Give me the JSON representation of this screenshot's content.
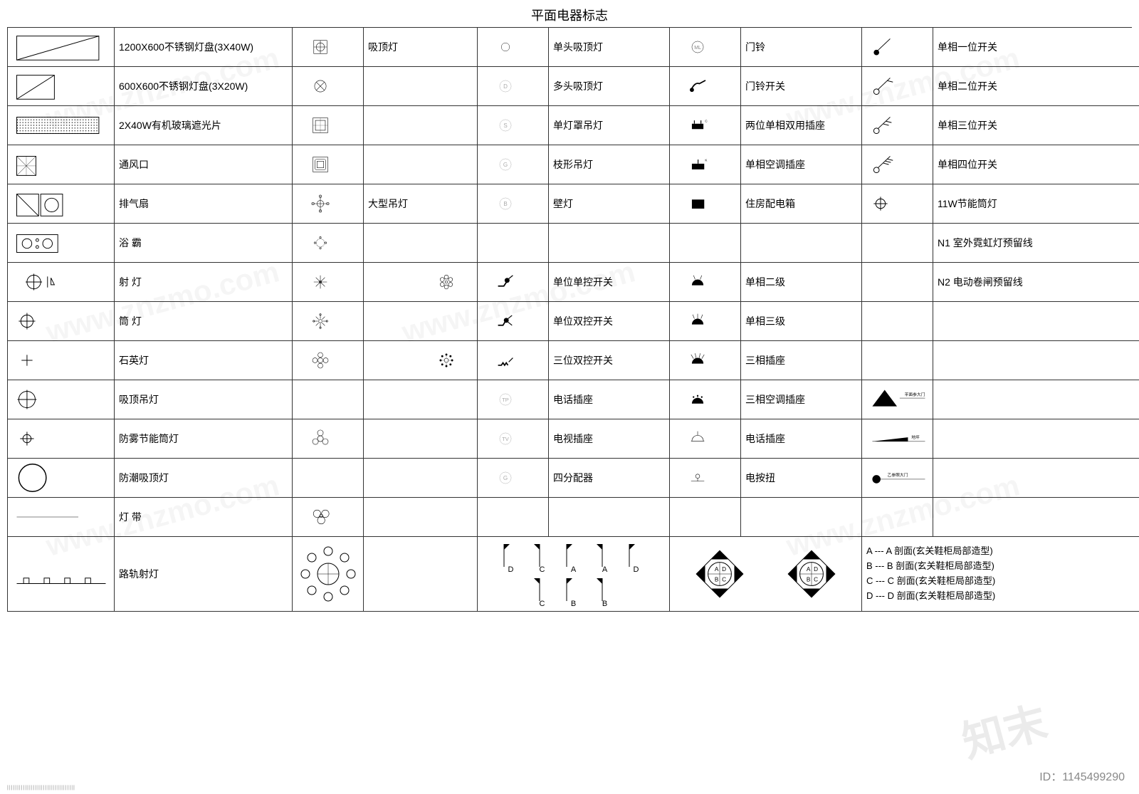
{
  "title": "平面电器标志",
  "id_label": "ID：1145499290",
  "watermark_text": "知末",
  "colors": {
    "stroke": "#000000",
    "fill_black": "#000000",
    "bg": "#ffffff",
    "border": "#333333",
    "light_gray": "#cccccc"
  },
  "font": {
    "label_size": 14,
    "title_size": 18
  },
  "columns": 10,
  "rows": [
    {
      "c1_icon": "rect-diag",
      "c1_label": "1200X600不锈钢灯盘(3X40W)",
      "c2_icon": "square-cross-circle",
      "c2_label": "吸顶灯",
      "c3_icon": "circle-small",
      "c3_label": "单头吸顶灯",
      "c4_icon": "circle-ml",
      "c4_label": "门铃",
      "c5_icon": "switch-1",
      "c5_label": "单相一位开关"
    },
    {
      "c1_icon": "rect-diag-small",
      "c1_label": "600X600不锈钢灯盘(3X20W)",
      "c2_icon": "circle-x",
      "c2_label": "",
      "c3_icon": "circle-d",
      "c3_label": "多头吸顶灯",
      "c4_icon": "bell-switch",
      "c4_label": "门铃开关",
      "c5_icon": "switch-2",
      "c5_label": "单相二位开关"
    },
    {
      "c1_icon": "rect-dots",
      "c1_label": "2X40W有机玻璃遮光片",
      "c2_icon": "square-grid",
      "c2_label": "",
      "c3_icon": "circle-s",
      "c3_label": "单灯罩吊灯",
      "c4_icon": "plug-2",
      "c4_label": "两位单相双用插座",
      "c5_icon": "switch-3",
      "c5_label": "单相三位开关"
    },
    {
      "c1_icon": "square-hatch",
      "c1_label": "通风口",
      "c2_icon": "square-frame",
      "c2_label": "",
      "c3_icon": "circle-g",
      "c3_label": "枝形吊灯",
      "c4_icon": "plug-ac",
      "c4_label": "单相空调插座",
      "c5_icon": "switch-4",
      "c5_label": "单相四位开关"
    },
    {
      "c1_icon": "square-fan",
      "c1_label": "排气扇",
      "c2_icon": "chandelier-cross",
      "c2_label": "大型吊灯",
      "c3_icon": "circle-b",
      "c3_label": "壁灯",
      "c4_icon": "box-solid",
      "c4_label": "住房配电箱",
      "c5_icon": "downlight",
      "c5_label": "11W节能筒灯"
    },
    {
      "c1_icon": "stove",
      "c1_label": "浴  霸",
      "c2_icon": "flower-dots",
      "c2_label": "",
      "c3_icon": "",
      "c3_label": "",
      "c4_icon": "",
      "c4_label": "",
      "c5_icon": "",
      "c5_label": "N1  室外霓虹灯预留线"
    },
    {
      "c1_icon": "spotlight",
      "c1_label": "射  灯",
      "c2_icon": "snowflake",
      "c2_label": "",
      "c3_icon": "switch-single",
      "c3_label": "单位单控开关",
      "c4_icon": "semi-2",
      "c4_label": "单相二级",
      "c5_icon": "",
      "c5_label": "N2  电动卷闸预留线",
      "c2_extra_icon": "flower-6"
    },
    {
      "c1_icon": "downlight-sm",
      "c1_label": "筒  灯",
      "c2_icon": "star-8",
      "c2_label": "",
      "c3_icon": "switch-double",
      "c3_label": "单位双控开关",
      "c4_icon": "semi-3",
      "c4_label": "单相三级",
      "c5_icon": "",
      "c5_label": ""
    },
    {
      "c1_icon": "cross-plus",
      "c1_label": "石英灯",
      "c2_icon": "flower-4circle",
      "c2_label": "",
      "c3_icon": "switch-triple",
      "c3_label": "三位双控开关",
      "c4_icon": "semi-3phase",
      "c4_label": "三相插座",
      "c5_icon": "",
      "c5_label": "",
      "c2_extra_icon": "dots-9"
    },
    {
      "c1_icon": "ceiling-pendant",
      "c1_label": "吸顶吊灯",
      "c2_icon": "",
      "c2_label": "",
      "c3_icon": "circle-tp",
      "c3_label": "电话插座",
      "c4_icon": "semi-ac3",
      "c4_label": "三相空调插座",
      "c5_icon": "triangle-note",
      "c5_label": ""
    },
    {
      "c1_icon": "downlight-fog",
      "c1_label": "防雾节能筒灯",
      "c2_icon": "flower-big",
      "c2_label": "",
      "c3_icon": "circle-tv",
      "c3_label": "电视插座",
      "c4_icon": "semi-phone",
      "c4_label": "电话插座",
      "c5_icon": "wedge-note",
      "c5_label": ""
    },
    {
      "c1_icon": "circle-big",
      "c1_label": "防潮吸顶灯",
      "c2_icon": "",
      "c2_label": "",
      "c3_icon": "circle-g2",
      "c3_label": "四分配器",
      "c4_icon": "button-press",
      "c4_label": "电按扭",
      "c5_icon": "dot-note",
      "c5_label": ""
    },
    {
      "c1_icon": "line-thin",
      "c1_label": "灯  带",
      "c2_icon": "circles-3",
      "c2_label": "",
      "c3_icon": "",
      "c3_label": "",
      "c4_icon": "",
      "c4_label": "",
      "c5_icon": "",
      "c5_label": ""
    }
  ],
  "tall_row": {
    "c1_icon": "track-lights",
    "c1_label": "路轨射灯",
    "c2_icon": "circle-ring-8",
    "section_marks": [
      "D",
      "C",
      "A",
      "A",
      "D",
      "C",
      "B",
      "B"
    ],
    "diamonds": [
      {
        "labels": [
          "A",
          "B",
          "C",
          "D"
        ]
      },
      {
        "labels": [
          "A",
          "B",
          "C",
          "D"
        ]
      }
    ],
    "legend": [
      "A --- A 剖面(玄关鞋柜局部造型)",
      "B --- B 剖面(玄关鞋柜局部造型)",
      "C --- C 剖面(玄关鞋柜局部造型)",
      "D --- D 剖面(玄关鞋柜局部造型)"
    ]
  }
}
